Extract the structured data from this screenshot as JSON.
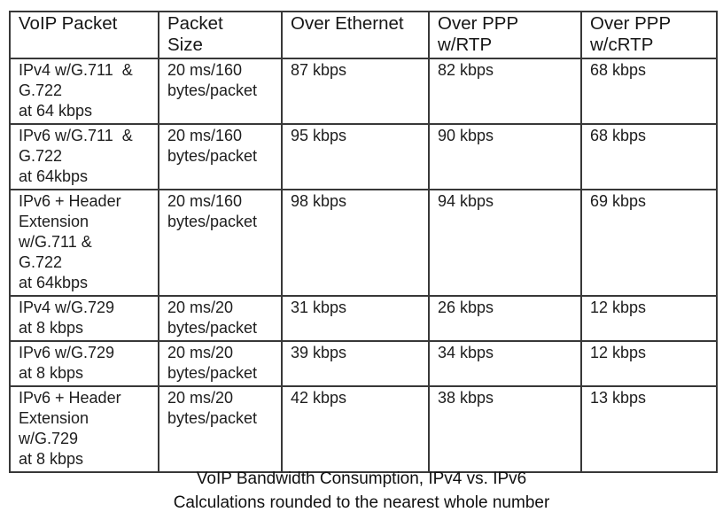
{
  "colors": {
    "background": "#ffffff",
    "border": "#383838",
    "text": "#1d1d1d"
  },
  "table": {
    "headers": [
      "VoIP Packet",
      "Packet\nSize",
      "Over Ethernet",
      "Over PPP\nw/RTP",
      "Over PPP\nw/cRTP"
    ],
    "rows": [
      [
        "IPv4 w/G.711  &\nG.722\nat 64 kbps",
        "20 ms/160\nbytes/packet",
        "87 kbps",
        "82 kbps",
        "68 kbps"
      ],
      [
        "IPv6 w/G.711  &\nG.722\nat 64kbps",
        "20 ms/160\nbytes/packet",
        "95 kbps",
        "90 kbps",
        "68 kbps"
      ],
      [
        "IPv6 + Header\nExtension\nw/G.711 &\nG.722\nat 64kbps",
        "20 ms/160\nbytes/packet",
        "98 kbps",
        "94 kbps",
        "69 kbps"
      ],
      [
        "IPv4 w/G.729\nat 8 kbps",
        "20 ms/20\nbytes/packet",
        "31 kbps",
        "26 kbps",
        "12 kbps"
      ],
      [
        "IPv6 w/G.729\nat 8 kbps",
        "20 ms/20\nbytes/packet",
        "39 kbps",
        "34 kbps",
        "12 kbps"
      ],
      [
        "IPv6 + Header\nExtension\nw/G.729\nat 8 kbps",
        "20 ms/20\nbytes/packet",
        "42 kbps",
        "38 kbps",
        "13 kbps"
      ]
    ]
  },
  "caption": {
    "line1": "VoIP Bandwidth Consumption, IPv4 vs. IPv6",
    "line2": "Calculations rounded to the nearest whole number"
  }
}
